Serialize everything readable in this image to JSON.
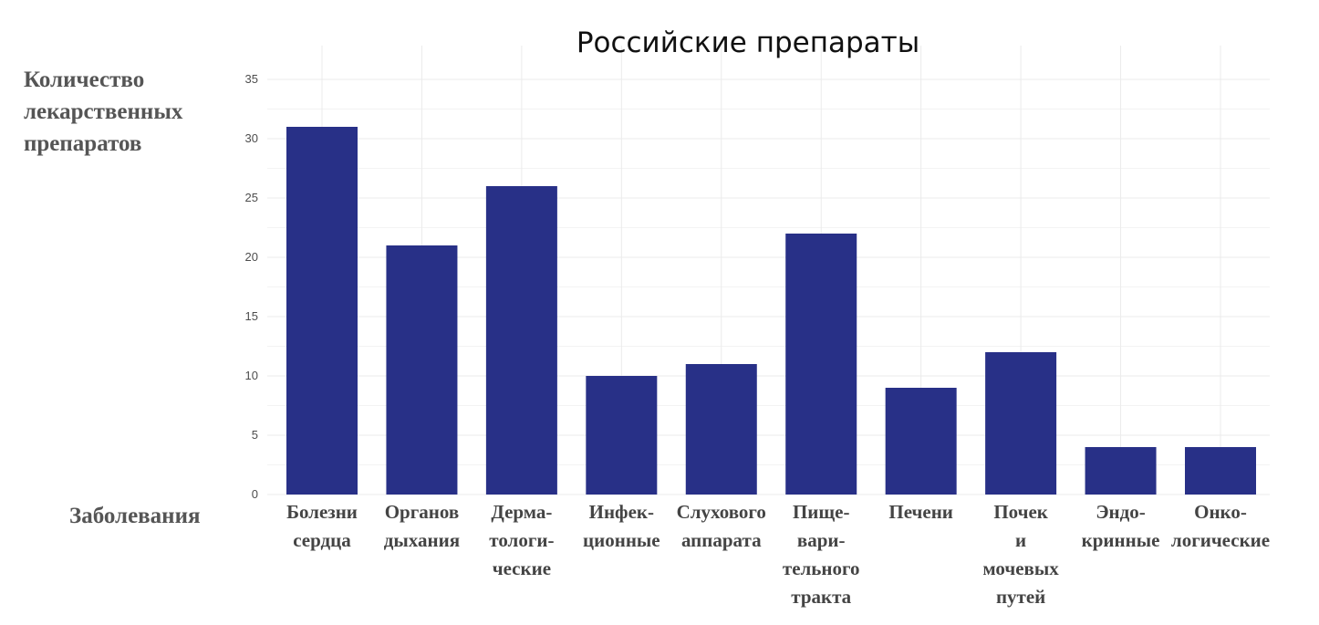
{
  "chart_data": {
    "type": "bar",
    "title": "Российские препараты",
    "ylabel": [
      "Количество",
      "лекарственных",
      "препаратов"
    ],
    "xlabel": "Заболевания",
    "ylim": [
      0,
      35
    ],
    "yticks": [
      "0",
      "5",
      "10",
      "15",
      "20",
      "25",
      "30",
      "35"
    ],
    "grid": true,
    "bar_color": "#283087",
    "categories": [
      [
        "Болезни",
        "сердца"
      ],
      [
        "Органов",
        "дыхания"
      ],
      [
        "Дерма-",
        "тологи-",
        "ческие"
      ],
      [
        "Инфек-",
        "ционные"
      ],
      [
        "Слухового",
        "аппарата"
      ],
      [
        "Пище-",
        "вари-",
        "тельного",
        "тракта"
      ],
      [
        "Печени"
      ],
      [
        "Почек",
        "и",
        "мочевых",
        "путей"
      ],
      [
        "Эндо-",
        "кринные"
      ],
      [
        "Онко-",
        "логические"
      ]
    ],
    "values": [
      31,
      21,
      26,
      10,
      11,
      22,
      9,
      12,
      4,
      4
    ]
  }
}
